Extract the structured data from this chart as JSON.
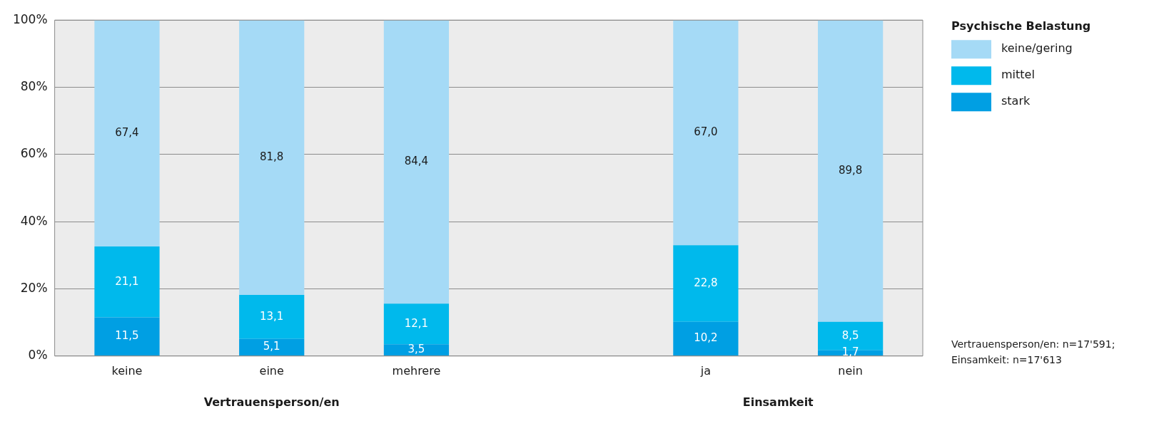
{
  "chart_data": {
    "type": "bar",
    "stacked": true,
    "categories": [
      "keine",
      "eine",
      "mehrere",
      null,
      "ja",
      "nein"
    ],
    "series": [
      {
        "name": "stark",
        "color": "#009fe3",
        "values": [
          11.5,
          5.1,
          3.5,
          null,
          10.2,
          1.7
        ],
        "value_labels": [
          "11,5",
          "5,1",
          "3,5",
          null,
          "10,2",
          "1,7"
        ]
      },
      {
        "name": "mittel",
        "color": "#00b9ec",
        "values": [
          21.1,
          13.1,
          12.1,
          null,
          22.8,
          8.5
        ],
        "value_labels": [
          "21,1",
          "13,1",
          "12,1",
          null,
          "22,8",
          "8,5"
        ]
      },
      {
        "name": "keine/gering",
        "color": "#a5daf6",
        "values": [
          67.4,
          81.8,
          84.4,
          null,
          67.0,
          89.8
        ],
        "value_labels": [
          "67,4",
          "81,8",
          "84,4",
          null,
          "67,0",
          "89,8"
        ]
      }
    ],
    "ylim": [
      0,
      100
    ],
    "yticks": [
      {
        "value": 0,
        "label": "0%"
      },
      {
        "value": 20,
        "label": "20%"
      },
      {
        "value": 40,
        "label": "40%"
      },
      {
        "value": 60,
        "label": "60%"
      },
      {
        "value": 80,
        "label": "80%"
      },
      {
        "value": 100,
        "label": "100%"
      }
    ],
    "grid": "y",
    "legend": "top right",
    "legend_title": "Psychische Belastung",
    "annotations": [
      "Vertrauensperson/en",
      "Einsamkeit",
      "Vertrauensperson/en: n=17'591;\nEinsamkeit: n=17'613"
    ]
  }
}
